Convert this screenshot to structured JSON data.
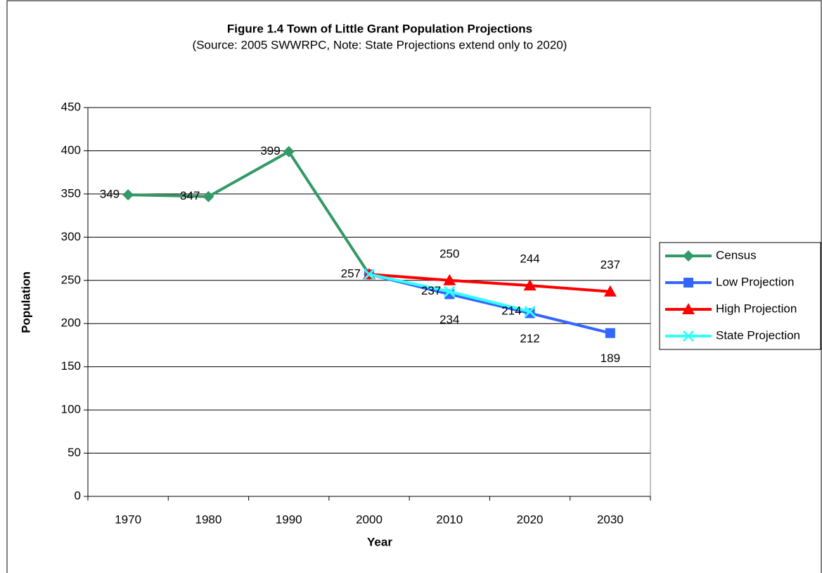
{
  "chart_data": {
    "type": "line",
    "title": "Figure 1.4 Town of Little Grant Population Projections",
    "subtitle": "(Source:  2005 SWWRPC, Note:  State Projections extend only to 2020)",
    "x_label": "Year",
    "y_label": "Population",
    "categories": [
      "1970",
      "1980",
      "1990",
      "2000",
      "2010",
      "2020",
      "2030"
    ],
    "series": [
      {
        "name": "Census",
        "color": "#339966",
        "marker": "diamond",
        "label_position": "left",
        "values": [
          349,
          347,
          399,
          257,
          null,
          null,
          null
        ]
      },
      {
        "name": "Low Projection",
        "color": "#3366ff",
        "marker": "square",
        "label_position": "below",
        "values": [
          null,
          null,
          null,
          257,
          234,
          212,
          189
        ]
      },
      {
        "name": "High Projection",
        "color": "#ff0000",
        "marker": "triangle",
        "label_position": "above",
        "values": [
          null,
          null,
          null,
          257,
          250,
          244,
          237
        ]
      },
      {
        "name": "State Projection",
        "color": "#33ffff",
        "marker": "x",
        "label_position": "left",
        "values": [
          null,
          null,
          null,
          257,
          237,
          214,
          null
        ]
      }
    ],
    "ylim": [
      0,
      450
    ],
    "yticks": [
      0,
      50,
      100,
      150,
      200,
      250,
      300,
      350,
      400,
      450
    ],
    "grid": true,
    "legend": "right"
  }
}
